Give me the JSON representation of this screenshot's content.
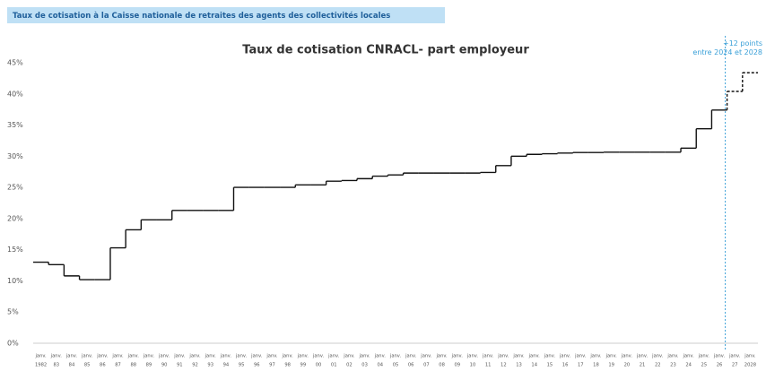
{
  "chart_data": {
    "type": "step",
    "header": "Taux de cotisation à la Caisse nationale de retraites des agents des collectivités locales",
    "title": "Taux de cotisation CNRACL- part employeur",
    "annotation": "+12 points\nentre 2024 et 2028",
    "x_prefix": "janv.",
    "categories": [
      "1982",
      "83",
      "84",
      "85",
      "86",
      "87",
      "88",
      "89",
      "90",
      "91",
      "92",
      "93",
      "94",
      "95",
      "96",
      "97",
      "98",
      "99",
      "00",
      "01",
      "02",
      "03",
      "04",
      "05",
      "06",
      "07",
      "08",
      "09",
      "10",
      "11",
      "12",
      "13",
      "14",
      "15",
      "16",
      "17",
      "18",
      "19",
      "20",
      "21",
      "22",
      "23",
      "24",
      "25",
      "26",
      "27",
      "2028"
    ],
    "values": [
      13.0,
      12.6,
      10.8,
      10.2,
      10.2,
      15.3,
      18.2,
      19.8,
      19.8,
      21.3,
      21.3,
      21.3,
      21.3,
      25.0,
      25.0,
      25.0,
      25.0,
      25.4,
      25.4,
      26.0,
      26.1,
      26.4,
      26.8,
      27.0,
      27.3,
      27.3,
      27.3,
      27.3,
      27.3,
      27.4,
      28.5,
      30.0,
      30.3,
      30.4,
      30.5,
      30.6,
      30.6,
      30.65,
      30.65,
      30.65,
      30.65,
      30.65,
      31.3,
      34.4,
      37.4,
      40.4,
      43.4
    ],
    "projection_from": "27",
    "color": "#111111",
    "annotation_color": "#3aa0d8",
    "ylim": [
      0,
      45
    ],
    "yticks": [
      {
        "value": 0,
        "label": "0%"
      },
      {
        "value": 5,
        "label": "5%"
      },
      {
        "value": 10,
        "label": "10%"
      },
      {
        "value": 15,
        "label": "15%"
      },
      {
        "value": 20,
        "label": "20%"
      },
      {
        "value": 25,
        "label": "25%"
      },
      {
        "value": 30,
        "label": "30%"
      },
      {
        "value": 35,
        "label": "35%"
      },
      {
        "value": 40,
        "label": "40%"
      },
      {
        "value": 45,
        "label": "45%"
      }
    ],
    "grid": false
  }
}
